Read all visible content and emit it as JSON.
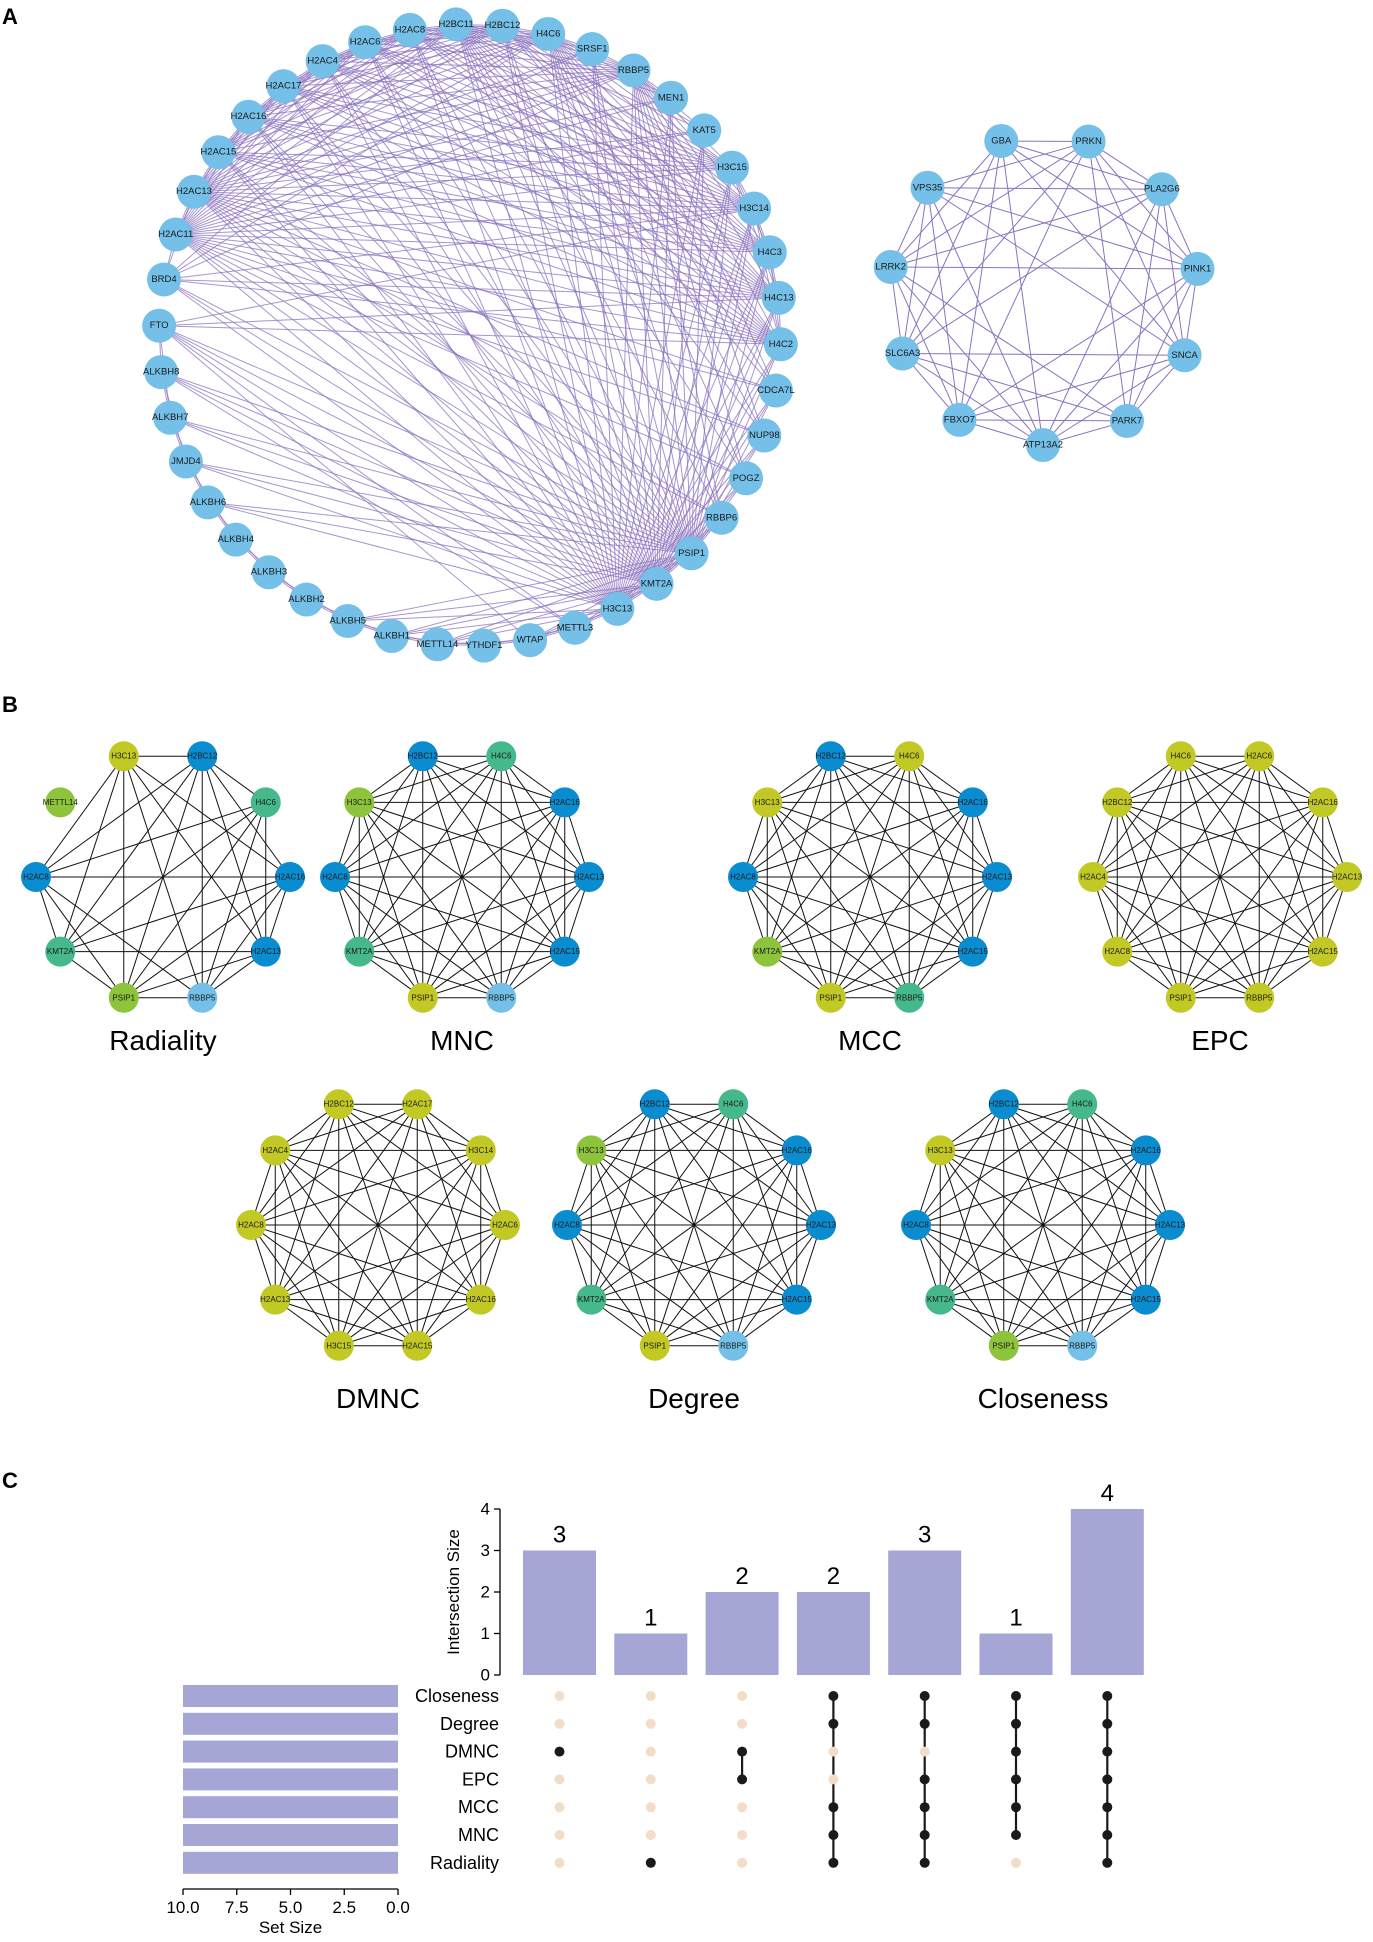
{
  "panels": {
    "a": "A",
    "b": "B",
    "c": "C"
  },
  "colors": {
    "light_blue": "#74c0e8",
    "blue": "#0a8cd0",
    "teal": "#46b98c",
    "green": "#8dc43c",
    "yellow": "#c3c924",
    "edge_purple": "#8a72bd",
    "edge_black": "#111111",
    "bar_purple": "#a5a6d6",
    "dot_inactive": "#f1ddc8",
    "dot_active": "#1a1a1a"
  },
  "network_a_main": {
    "nodes": [
      "H2BC12",
      "H4C6",
      "SRSF1",
      "RBBP5",
      "MEN1",
      "KAT5",
      "H3C15",
      "H3C14",
      "H4C3",
      "H4C13",
      "H4C2",
      "CDCA7L",
      "NUP98",
      "POGZ",
      "RBBP6",
      "PSIP1",
      "KMT2A",
      "H3C13",
      "METTL3",
      "WTAP",
      "YTHDF1",
      "METTL14",
      "ALKBH1",
      "ALKBH5",
      "ALKBH2",
      "ALKBH3",
      "ALKBH4",
      "ALKBH6",
      "JMJD4",
      "ALKBH7",
      "ALKBH8",
      "FTO",
      "BRD4",
      "H2AC11",
      "H2AC13",
      "H2AC15",
      "H2AC16",
      "H2AC17",
      "H2AC4",
      "H2AC6",
      "H2AC8",
      "H2BC11"
    ],
    "hubs": [
      "H2BC12",
      "H4C6",
      "RBBP5",
      "H3C15",
      "H3C14",
      "H4C3",
      "H4C13",
      "H4C2",
      "PSIP1",
      "KMT2A",
      "H3C13",
      "H2AC11",
      "H2AC13",
      "H2AC15",
      "H2AC16",
      "H2AC17",
      "H2AC4",
      "H2AC6",
      "H2AC8",
      "H2BC11"
    ],
    "m6a_group": [
      "FTO",
      "ALKBH8",
      "ALKBH7",
      "JMJD4",
      "ALKBH6",
      "ALKBH4",
      "ALKBH3",
      "ALKBH2",
      "ALKBH5",
      "ALKBH1",
      "METTL14",
      "YTHDF1",
      "WTAP",
      "METTL3"
    ]
  },
  "network_a_small": {
    "nodes": [
      "GBA",
      "PRKN",
      "PLA2G6",
      "PINK1",
      "SNCA",
      "PARK7",
      "ATP13A2",
      "FBXO7",
      "SLC6A3",
      "LRRK2",
      "VPS35"
    ]
  },
  "networks_b": [
    {
      "title": "Radiality",
      "nodes": [
        {
          "label": "H2BC12",
          "color": "blue"
        },
        {
          "label": "H4C6",
          "color": "teal"
        },
        {
          "label": "H2AC16",
          "color": "blue"
        },
        {
          "label": "H2AC13",
          "color": "blue"
        },
        {
          "label": "RBBP5",
          "color": "light_blue"
        },
        {
          "label": "PSIP1",
          "color": "green"
        },
        {
          "label": "KMT2A",
          "color": "teal"
        },
        {
          "label": "H2AC8",
          "color": "blue"
        },
        {
          "label": "METTL14",
          "color": "green"
        },
        {
          "label": "H3C13",
          "color": "yellow"
        }
      ]
    },
    {
      "title": "MNC",
      "nodes": [
        {
          "label": "H4C6",
          "color": "teal"
        },
        {
          "label": "H2AC16",
          "color": "blue"
        },
        {
          "label": "H2AC13",
          "color": "blue"
        },
        {
          "label": "H2AC15",
          "color": "blue"
        },
        {
          "label": "RBBP5",
          "color": "light_blue"
        },
        {
          "label": "PSIP1",
          "color": "yellow"
        },
        {
          "label": "KMT2A",
          "color": "teal"
        },
        {
          "label": "H2AC8",
          "color": "blue"
        },
        {
          "label": "H3C13",
          "color": "green"
        },
        {
          "label": "H2BC12",
          "color": "blue"
        }
      ]
    },
    {
      "title": "MCC",
      "nodes": [
        {
          "label": "H4C6",
          "color": "yellow"
        },
        {
          "label": "H2AC16",
          "color": "blue"
        },
        {
          "label": "H2AC13",
          "color": "blue"
        },
        {
          "label": "H2AC15",
          "color": "blue"
        },
        {
          "label": "RBBP5",
          "color": "teal"
        },
        {
          "label": "PSIP1",
          "color": "yellow"
        },
        {
          "label": "KMT2A",
          "color": "green"
        },
        {
          "label": "H2AC8",
          "color": "blue"
        },
        {
          "label": "H3C13",
          "color": "yellow"
        },
        {
          "label": "H2BC12",
          "color": "blue"
        }
      ]
    },
    {
      "title": "EPC",
      "nodes": [
        {
          "label": "H2AC6",
          "color": "yellow"
        },
        {
          "label": "H2AC16",
          "color": "yellow"
        },
        {
          "label": "H2AC13",
          "color": "yellow"
        },
        {
          "label": "H2AC15",
          "color": "yellow"
        },
        {
          "label": "RBBP5",
          "color": "yellow"
        },
        {
          "label": "PSIP1",
          "color": "yellow"
        },
        {
          "label": "H2AC8",
          "color": "yellow"
        },
        {
          "label": "H2AC4",
          "color": "yellow"
        },
        {
          "label": "H2BC12",
          "color": "yellow"
        },
        {
          "label": "H4C6",
          "color": "yellow"
        }
      ]
    },
    {
      "title": "DMNC",
      "nodes": [
        {
          "label": "H2AC17",
          "color": "yellow"
        },
        {
          "label": "H3C14",
          "color": "yellow"
        },
        {
          "label": "H2AC6",
          "color": "yellow"
        },
        {
          "label": "H2AC16",
          "color": "yellow"
        },
        {
          "label": "H2AC15",
          "color": "yellow"
        },
        {
          "label": "H3C15",
          "color": "yellow"
        },
        {
          "label": "H2AC13",
          "color": "yellow"
        },
        {
          "label": "H2AC8",
          "color": "yellow"
        },
        {
          "label": "H2AC4",
          "color": "yellow"
        },
        {
          "label": "H2BC12",
          "color": "yellow"
        }
      ]
    },
    {
      "title": "Degree",
      "nodes": [
        {
          "label": "H4C6",
          "color": "teal"
        },
        {
          "label": "H2AC16",
          "color": "blue"
        },
        {
          "label": "H2AC13",
          "color": "blue"
        },
        {
          "label": "H2AC15",
          "color": "blue"
        },
        {
          "label": "RBBP5",
          "color": "light_blue"
        },
        {
          "label": "PSIP1",
          "color": "yellow"
        },
        {
          "label": "KMT2A",
          "color": "teal"
        },
        {
          "label": "H2AC8",
          "color": "blue"
        },
        {
          "label": "H3C13",
          "color": "green"
        },
        {
          "label": "H2BC12",
          "color": "blue"
        }
      ]
    },
    {
      "title": "Closeness",
      "nodes": [
        {
          "label": "H4C6",
          "color": "teal"
        },
        {
          "label": "H2AC16",
          "color": "blue"
        },
        {
          "label": "H2AC13",
          "color": "blue"
        },
        {
          "label": "H2AC15",
          "color": "blue"
        },
        {
          "label": "RBBP5",
          "color": "light_blue"
        },
        {
          "label": "PSIP1",
          "color": "green"
        },
        {
          "label": "KMT2A",
          "color": "teal"
        },
        {
          "label": "H2AC8",
          "color": "blue"
        },
        {
          "label": "H3C13",
          "color": "yellow"
        },
        {
          "label": "H2BC12",
          "color": "blue"
        }
      ]
    }
  ],
  "chart_data": {
    "type": "upset",
    "ylabel": "Intersection Size",
    "xlabel": "Set Size",
    "y_ticks": [
      "0",
      "1",
      "2",
      "3",
      "4"
    ],
    "set_size_ticks": [
      "10.0",
      "7.5",
      "5.0",
      "2.5",
      "0.0"
    ],
    "sets": [
      {
        "name": "Closeness",
        "size": 10
      },
      {
        "name": "Degree",
        "size": 10
      },
      {
        "name": "DMNC",
        "size": 10
      },
      {
        "name": "EPC",
        "size": 10
      },
      {
        "name": "MCC",
        "size": 10
      },
      {
        "name": "MNC",
        "size": 10
      },
      {
        "name": "Radiality",
        "size": 10
      }
    ],
    "intersections": [
      {
        "size": 3,
        "members": [
          "DMNC"
        ]
      },
      {
        "size": 1,
        "members": [
          "Radiality"
        ]
      },
      {
        "size": 2,
        "members": [
          "DMNC",
          "EPC"
        ]
      },
      {
        "size": 2,
        "members": [
          "Closeness",
          "Degree",
          "MCC",
          "MNC",
          "Radiality"
        ]
      },
      {
        "size": 3,
        "members": [
          "Closeness",
          "Degree",
          "EPC",
          "MCC",
          "MNC",
          "Radiality"
        ]
      },
      {
        "size": 1,
        "members": [
          "Closeness",
          "Degree",
          "DMNC",
          "EPC",
          "MCC",
          "MNC"
        ]
      },
      {
        "size": 4,
        "members": [
          "Closeness",
          "Degree",
          "DMNC",
          "EPC",
          "MCC",
          "MNC",
          "Radiality"
        ]
      }
    ]
  }
}
